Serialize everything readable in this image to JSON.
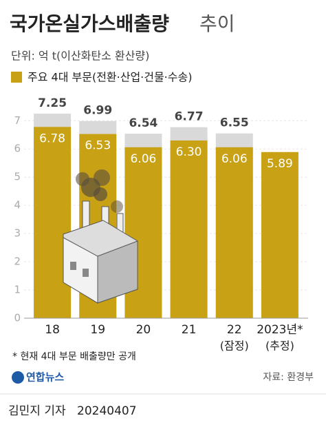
{
  "chart_data": {
    "type": "bar",
    "title": "국가온실가스배출량",
    "title_light": "추이",
    "subtitle": "단위: 억 t(이산화탄소 환산량)",
    "categories": [
      "18",
      "19",
      "20",
      "21",
      "22",
      "2023년*"
    ],
    "category_notes": [
      null,
      null,
      null,
      null,
      "(잠정)",
      "(추정)"
    ],
    "series": [
      {
        "name": null,
        "color": "#d9d9d9",
        "values": [
          7.25,
          6.99,
          6.54,
          6.77,
          6.55,
          null
        ]
      },
      {
        "name": "주요 4대 부문(전환·산업·건물·수송)",
        "color": "#c9a114",
        "values": [
          6.78,
          6.53,
          6.06,
          6.3,
          6.06,
          5.89
        ],
        "value_labels": [
          "6.78",
          "6.53",
          "6.06",
          "6.30",
          "6.06",
          "5.89"
        ]
      }
    ],
    "ylim": [
      0,
      7.3
    ],
    "yticks": [
      0,
      1,
      2,
      3,
      4,
      5,
      6,
      7
    ],
    "grid": true,
    "footnote": "* 현재 4대 부문 배출량만 공개",
    "logo": "연합뉴스",
    "source": "자료: 환경부",
    "byline": "김민지 기자",
    "date": "20240407"
  }
}
